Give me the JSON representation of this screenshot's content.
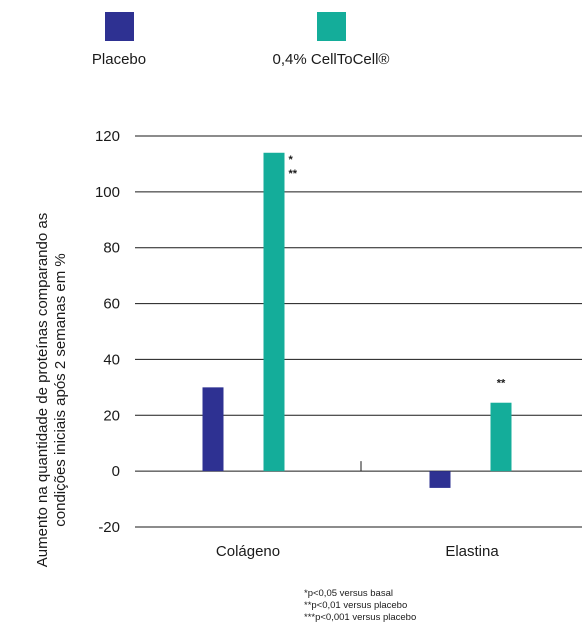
{
  "chart_data": {
    "type": "bar",
    "categories": [
      "Colágeno",
      "Elastina"
    ],
    "series": [
      {
        "name": "Placebo",
        "color": "#2e3192",
        "values": [
          30,
          -6
        ]
      },
      {
        "name": "0,4% CellToCell®",
        "color": "#14ad9a",
        "values": [
          114,
          24.5
        ]
      }
    ],
    "ylabel_lines": [
      "Aumento na quantidade de proteínas comparando as",
      "condições iniciais após 2 semanas em %"
    ],
    "ylim": [
      -20,
      120
    ],
    "yticks": [
      -20,
      0,
      20,
      40,
      60,
      80,
      100,
      120
    ],
    "ytick_labels": [
      "-20",
      "0",
      "20",
      "40",
      "60",
      "80",
      "100",
      "120"
    ],
    "grid": true,
    "legend_position": "top",
    "annotations": [
      {
        "category_index": 0,
        "series_index": 1,
        "lines": [
          "*",
          "**"
        ]
      },
      {
        "category_index": 1,
        "series_index": 1,
        "lines": [
          "**"
        ]
      }
    ],
    "footnotes": [
      "*p<0,05 versus basal",
      "**p<0,01 versus placebo",
      "***p<0,001 versus placebo"
    ]
  }
}
